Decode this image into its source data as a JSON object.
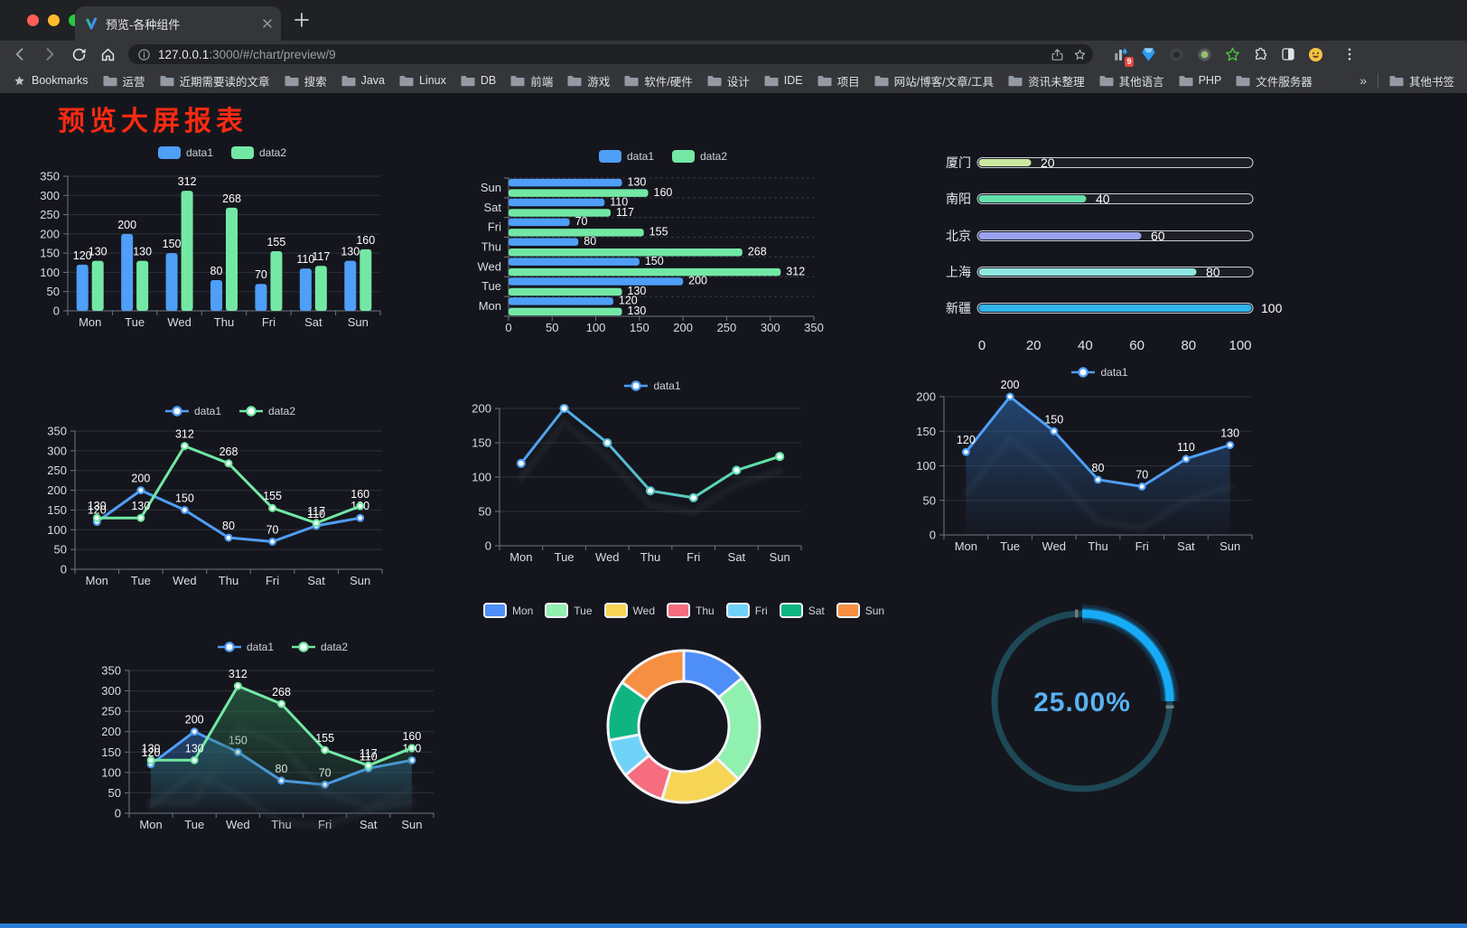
{
  "browser": {
    "tab_title": "预览-各种组件",
    "url": {
      "host": "127.0.0.1",
      "rest": ":3000/#/chart/preview/9"
    },
    "extension_badge": "9",
    "bookmarks_bar": {
      "bookmarks_label": "Bookmarks",
      "folders": [
        "运营",
        "近期需要读的文章",
        "搜索",
        "Java",
        "Linux",
        "DB",
        "前端",
        "游戏",
        "软件/硬件",
        "设计",
        "IDE",
        "项目",
        "网站/博客/文章/工具",
        "资讯未整理",
        "其他语言",
        "PHP",
        "文件服务器"
      ],
      "overflow_chevron": "»",
      "other_bookmarks": "其他书签"
    }
  },
  "page": {
    "title": "预览大屏报表"
  },
  "theme": {
    "page_bg": "#15161d",
    "chrome_bg": "#202124",
    "toolbar_bg": "#35363a",
    "title_color": "#f92a11",
    "axis_color": "#6f7581",
    "grid_color": "#2d313b",
    "label_color": "#d9dde3",
    "value_label_color": "#ffffff",
    "series_blue": "#4f9ef7",
    "series_green": "#73e8a5"
  },
  "chart_data": [
    {
      "id": "bar-vertical",
      "type": "bar",
      "categories": [
        "Mon",
        "Tue",
        "Wed",
        "Thu",
        "Fri",
        "Sat",
        "Sun"
      ],
      "series": [
        {
          "name": "data1",
          "color": "#4f9ef7",
          "values": [
            120,
            200,
            150,
            80,
            70,
            110,
            130
          ]
        },
        {
          "name": "data2",
          "color": "#73e8a5",
          "values": [
            130,
            130,
            312,
            268,
            155,
            117,
            160
          ]
        }
      ],
      "ylim": [
        0,
        350
      ],
      "ystep": 50,
      "legend_position": "top",
      "value_labels": true
    },
    {
      "id": "bar-horizontal",
      "type": "hbar",
      "categories": [
        "Mon",
        "Tue",
        "Wed",
        "Thu",
        "Fri",
        "Sat",
        "Sun"
      ],
      "display_order_top_to_bottom": [
        "Sun",
        "Sat",
        "Fri",
        "Thu",
        "Wed",
        "Tue",
        "Mon"
      ],
      "series": [
        {
          "name": "data1",
          "color": "#4f9ef7",
          "values": [
            120,
            200,
            150,
            80,
            70,
            110,
            130
          ]
        },
        {
          "name": "data2",
          "color": "#73e8a5",
          "values": [
            130,
            130,
            312,
            268,
            155,
            117,
            160
          ]
        }
      ],
      "xlim": [
        0,
        350
      ],
      "xstep": 50,
      "legend_position": "top",
      "value_labels": true
    },
    {
      "id": "progress-city",
      "type": "progress",
      "max": 100,
      "xticks": [
        0,
        20,
        40,
        60,
        80,
        100
      ],
      "items": [
        {
          "label": "厦门",
          "value": 20,
          "color": "#cbe89f"
        },
        {
          "label": "南阳",
          "value": 40,
          "color": "#63e1ab"
        },
        {
          "label": "北京",
          "value": 60,
          "color": "#9aa1ee"
        },
        {
          "label": "上海",
          "value": 80,
          "color": "#8fe7e1"
        },
        {
          "label": "新疆",
          "value": 100,
          "color": "#2fb3e9"
        }
      ]
    },
    {
      "id": "line-two-series",
      "type": "line",
      "categories": [
        "Mon",
        "Tue",
        "Wed",
        "Thu",
        "Fri",
        "Sat",
        "Sun"
      ],
      "series": [
        {
          "name": "data1",
          "color": "#4f9ef7",
          "values": [
            120,
            200,
            150,
            80,
            70,
            110,
            130
          ]
        },
        {
          "name": "data2",
          "color": "#73e8a5",
          "values": [
            130,
            130,
            312,
            268,
            155,
            117,
            160
          ]
        }
      ],
      "ylim": [
        0,
        350
      ],
      "ystep": 50,
      "legend_position": "top",
      "value_labels": true
    },
    {
      "id": "line-gradient",
      "type": "line",
      "categories": [
        "Mon",
        "Tue",
        "Wed",
        "Thu",
        "Fri",
        "Sat",
        "Sun"
      ],
      "series": [
        {
          "name": "data1",
          "gradient": [
            "#4f9ef7",
            "#5fe8a1"
          ],
          "values": [
            120,
            200,
            150,
            80,
            70,
            110,
            130
          ]
        }
      ],
      "ylim": [
        0,
        200
      ],
      "ystep": 50,
      "legend_position": "top",
      "value_labels": false,
      "shadow": true
    },
    {
      "id": "area-single",
      "type": "area",
      "categories": [
        "Mon",
        "Tue",
        "Wed",
        "Thu",
        "Fri",
        "Sat",
        "Sun"
      ],
      "series": [
        {
          "name": "data1",
          "color": "#4f9ef7",
          "fill": "#2f6bb3",
          "values": [
            120,
            200,
            150,
            80,
            70,
            110,
            130
          ]
        }
      ],
      "ylim": [
        0,
        200
      ],
      "ystep": 50,
      "legend_position": "top",
      "value_labels": true,
      "shadow": true
    },
    {
      "id": "area-two",
      "type": "area",
      "categories": [
        "Mon",
        "Tue",
        "Wed",
        "Thu",
        "Fri",
        "Sat",
        "Sun"
      ],
      "series": [
        {
          "name": "data1",
          "color": "#4f9ef7",
          "fill": "#2f6bb3",
          "values": [
            120,
            200,
            150,
            80,
            70,
            110,
            130
          ]
        },
        {
          "name": "data2",
          "color": "#73e8a5",
          "fill": "#2e7d52",
          "values": [
            130,
            130,
            312,
            268,
            155,
            117,
            160
          ]
        }
      ],
      "ylim": [
        0,
        350
      ],
      "ystep": 50,
      "legend_position": "top",
      "value_labels": true,
      "shadow": true
    },
    {
      "id": "donut-week",
      "type": "pie",
      "inner_radius_ratio": 0.6,
      "border_color": "#f2f4f7",
      "items": [
        {
          "label": "Mon",
          "value": 120,
          "color": "#4e8ef7"
        },
        {
          "label": "Tue",
          "value": 200,
          "color": "#8ff0b0"
        },
        {
          "label": "Wed",
          "value": 150,
          "color": "#f6d555"
        },
        {
          "label": "Thu",
          "value": 80,
          "color": "#f56d7e"
        },
        {
          "label": "Fri",
          "value": 70,
          "color": "#6fd3f7"
        },
        {
          "label": "Sat",
          "value": 110,
          "color": "#0fb581"
        },
        {
          "label": "Sun",
          "value": 130,
          "color": "#f68f41"
        }
      ]
    },
    {
      "id": "gauge-percent",
      "type": "gauge",
      "value": 25,
      "max": 100,
      "display": "25.00%",
      "color": "#17abf7",
      "track_color": "#1d4956",
      "text_color": "#58b2f2"
    }
  ]
}
